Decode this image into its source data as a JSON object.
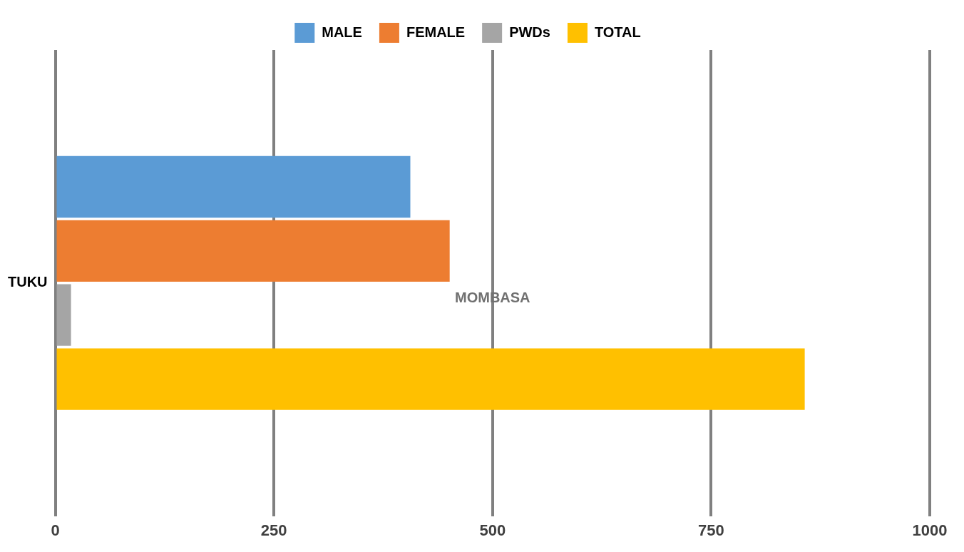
{
  "chart_data": {
    "type": "bar",
    "orientation": "horizontal",
    "categories": [
      "TUKU"
    ],
    "series": [
      {
        "name": "MALE",
        "color": "#5b9bd5",
        "values": [
          406
        ]
      },
      {
        "name": "FEMALE",
        "color": "#ed7d31",
        "values": [
          451
        ]
      },
      {
        "name": "PWDs",
        "color": "#a5a5a5",
        "values": [
          18
        ]
      },
      {
        "name": "TOTAL",
        "color": "#ffc000",
        "values": [
          857
        ]
      }
    ],
    "xlim": [
      0,
      1000
    ],
    "xticks": [
      0,
      250,
      500,
      750,
      1000
    ],
    "grid": "x",
    "legend": "top",
    "annotations": [
      "MOMBASA"
    ]
  }
}
